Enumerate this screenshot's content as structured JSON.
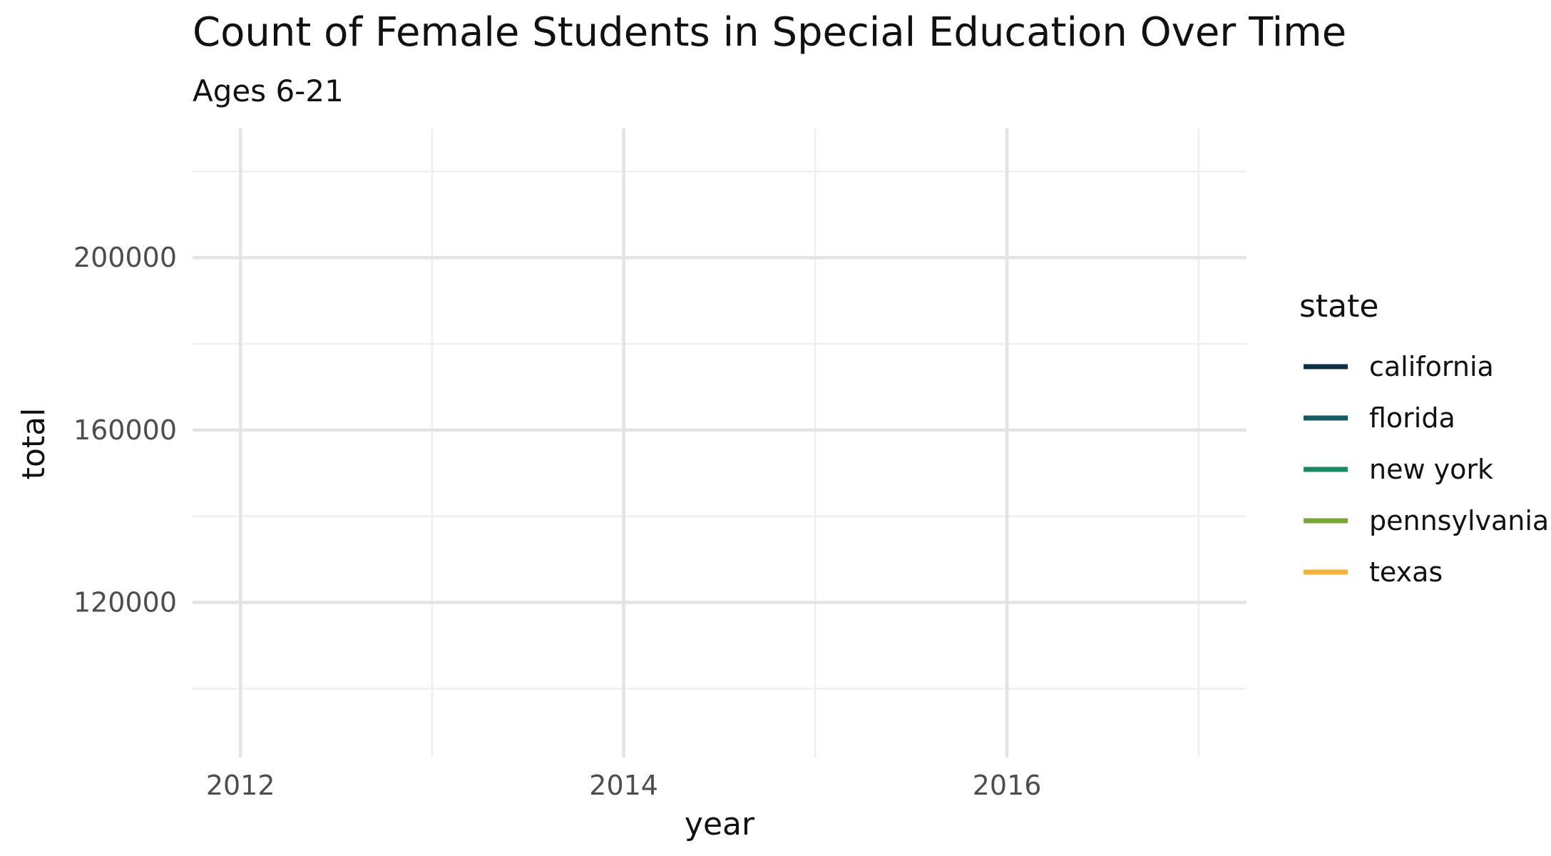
{
  "chart_data": {
    "type": "line",
    "title": "Count of Female Students in Special Education Over Time",
    "subtitle": "Ages 6-21",
    "xlabel": "year",
    "ylabel": "total",
    "xlim": [
      2011.75,
      2017.25
    ],
    "ylim": [
      84000,
      230000
    ],
    "x_ticks": [
      2012,
      2014,
      2016
    ],
    "x_tick_labels": [
      "2012",
      "2014",
      "2016"
    ],
    "x_minor_ticks": [
      2013,
      2015,
      2017
    ],
    "y_ticks": [
      120000,
      160000,
      200000
    ],
    "y_tick_labels": [
      "120000",
      "160000",
      "200000"
    ],
    "y_minor_ticks": [
      100000,
      140000,
      180000,
      220000
    ],
    "grid": true,
    "legend": {
      "title": "state",
      "placement": "right",
      "entries": [
        {
          "name": "california",
          "color": "#0d2f45"
        },
        {
          "name": "florida",
          "color": "#145c63"
        },
        {
          "name": "new york",
          "color": "#158a63"
        },
        {
          "name": "pennsylvania",
          "color": "#7aa63a"
        },
        {
          "name": "texas",
          "color": "#f7b037"
        }
      ]
    },
    "series": [
      {
        "name": "california",
        "x": [],
        "values": []
      },
      {
        "name": "florida",
        "x": [],
        "values": []
      },
      {
        "name": "new york",
        "x": [],
        "values": []
      },
      {
        "name": "pennsylvania",
        "x": [],
        "values": []
      },
      {
        "name": "texas",
        "x": [],
        "values": []
      }
    ]
  },
  "colors": {
    "grid_major": "#e4e4e4",
    "grid_minor": "#efefef",
    "background": "#ffffff"
  }
}
